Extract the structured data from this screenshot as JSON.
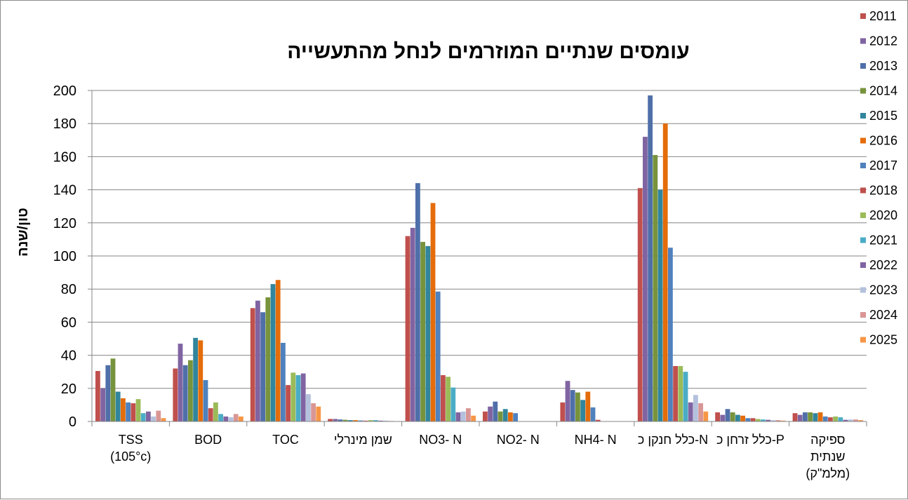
{
  "chart_data": {
    "type": "bar",
    "title": "עומסים שנתיים המוזרמים לנחל מהתעשייה",
    "ylabel": "טון/שנה",
    "xlabel": "",
    "ylim": [
      0,
      200
    ],
    "yticks": [
      0,
      20,
      40,
      60,
      80,
      100,
      120,
      140,
      160,
      180,
      200
    ],
    "grid": true,
    "legend_position": "right",
    "categories": [
      [
        "TSS",
        "(105°c)"
      ],
      [
        "BOD"
      ],
      [
        "TOC"
      ],
      [
        "שמן מינרלי"
      ],
      [
        "NO3- N"
      ],
      [
        "NO2- N"
      ],
      [
        "NH4- N"
      ],
      [
        "כלל חנקן כ-N"
      ],
      [
        "כלל זרחן כ-P"
      ],
      [
        "ספיקה",
        "שנתית",
        "(מלמ\"ק)"
      ]
    ],
    "series": [
      {
        "name": "2011",
        "color": "#C0504D",
        "values": [
          30.5,
          32,
          68.5,
          1.5,
          112,
          6,
          11.5,
          141,
          5.5,
          5
        ]
      },
      {
        "name": "2012",
        "color": "#8064A2",
        "values": [
          20,
          47,
          73,
          1.5,
          117,
          9,
          24.5,
          172,
          4,
          4
        ]
      },
      {
        "name": "2013",
        "color": "#4F6FA9",
        "values": [
          34,
          34,
          66,
          1.2,
          144,
          12,
          19,
          197,
          7.5,
          5.5
        ]
      },
      {
        "name": "2014",
        "color": "#77933C",
        "values": [
          38,
          37,
          75,
          1,
          108.5,
          6,
          17.5,
          161,
          5.5,
          5.5
        ]
      },
      {
        "name": "2015",
        "color": "#31859C",
        "values": [
          18,
          50.5,
          83,
          0.8,
          106,
          7.5,
          13,
          140,
          4,
          5
        ]
      },
      {
        "name": "2016",
        "color": "#E46C0A",
        "values": [
          14,
          49,
          85.5,
          0.8,
          132,
          5.5,
          18,
          180,
          3.5,
          5.5
        ]
      },
      {
        "name": "2017",
        "color": "#4F81BD",
        "values": [
          11.5,
          25,
          47.5,
          0.6,
          78.5,
          5,
          8.5,
          105,
          2,
          3
        ]
      },
      {
        "name": "2018",
        "color": "#C0504D",
        "values": [
          11,
          8,
          22,
          0.5,
          28,
          0,
          1,
          33.5,
          2,
          2.5
        ]
      },
      {
        "name": "2020",
        "color": "#9BBB59",
        "values": [
          13.5,
          11.5,
          29.5,
          0.8,
          27,
          0,
          0,
          33.5,
          1.5,
          3
        ]
      },
      {
        "name": "2021",
        "color": "#4BACC6",
        "values": [
          5,
          4.5,
          28,
          0.8,
          20.5,
          0,
          0,
          30,
          1.2,
          2.5
        ]
      },
      {
        "name": "2022",
        "color": "#8064A2",
        "values": [
          6,
          3,
          29,
          0.5,
          5.5,
          0,
          0,
          11.5,
          1,
          1
        ]
      },
      {
        "name": "2023",
        "color": "#B4C1DD",
        "values": [
          3,
          2.5,
          16.5,
          0.5,
          6,
          0,
          0,
          16,
          0.8,
          1.2
        ]
      },
      {
        "name": "2024",
        "color": "#D99694",
        "values": [
          6.5,
          4.5,
          11,
          0.3,
          8,
          0,
          0,
          11,
          0.8,
          1.2
        ]
      },
      {
        "name": "2025",
        "color": "#F79646",
        "values": [
          2,
          3,
          9,
          0.2,
          3.5,
          0,
          0,
          6,
          0.5,
          0.8
        ]
      }
    ]
  }
}
